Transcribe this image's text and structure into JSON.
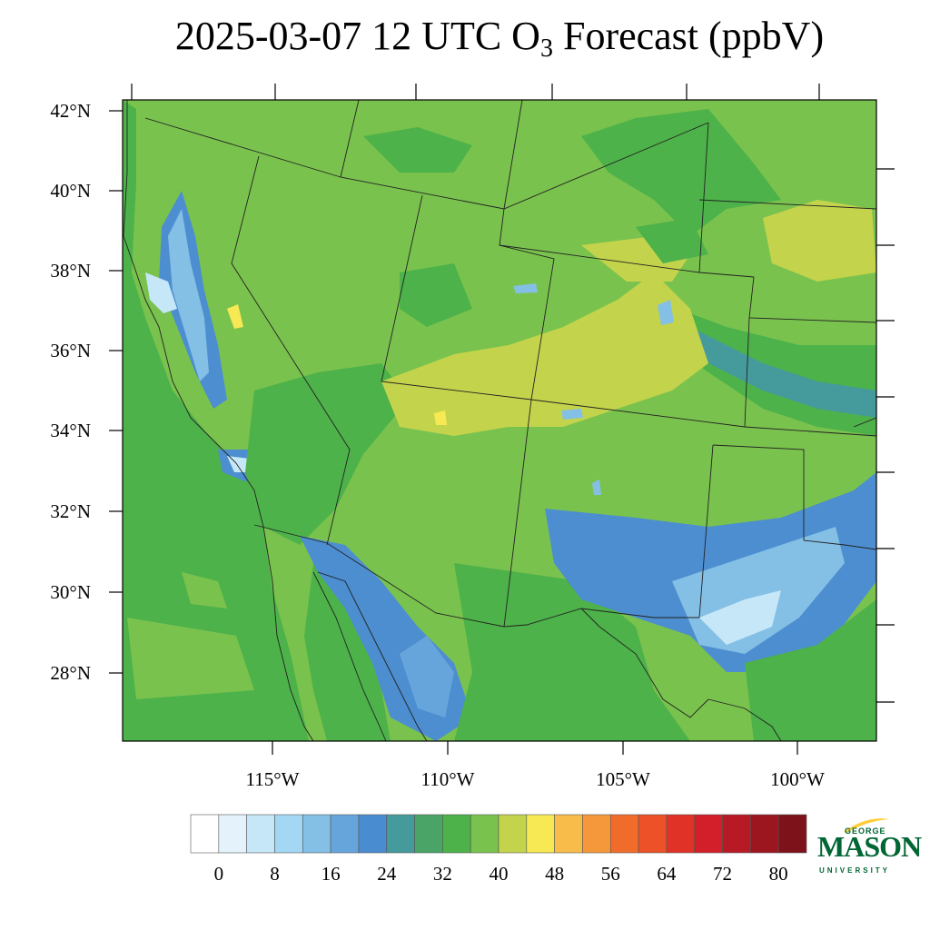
{
  "title": {
    "prefix": "2025-03-07 12 UTC O",
    "subscript": "3",
    "suffix": " Forecast (ppbV)"
  },
  "map": {
    "lat_labels": [
      "42°N",
      "40°N",
      "38°N",
      "36°N",
      "34°N",
      "32°N",
      "30°N",
      "28°N"
    ],
    "lon_labels": [
      "115°W",
      "110°W",
      "105°W",
      "100°W"
    ],
    "field_colors": {
      "dominant": "#7ac24e",
      "low": "#4db249",
      "elevated": "#c3d44c",
      "peak": "#f7e953",
      "depleted_blue": "#4c8ed0",
      "depleted_light": "#7fbde9",
      "minimum": "#ffffff"
    }
  },
  "colorbar": {
    "colors": [
      "#ffffff",
      "#e3f2fb",
      "#c6e7f7",
      "#a3d7f3",
      "#84bfe5",
      "#66a5dc",
      "#4a8cd0",
      "#459a9c",
      "#4aa468",
      "#4db249",
      "#7ac24e",
      "#c3d44c",
      "#f7e953",
      "#f8bc4a",
      "#f5983b",
      "#f16c2b",
      "#ec5127",
      "#e03226",
      "#d21f2a",
      "#b81a25",
      "#9c1620",
      "#7d121a"
    ],
    "tick_labels": [
      "0",
      "8",
      "16",
      "24",
      "32",
      "40",
      "48",
      "56",
      "64",
      "72",
      "80"
    ]
  },
  "logo": {
    "line1": "GEORGE",
    "line2": "MASON",
    "line3": "UNIVERSITY",
    "color": "#006633"
  }
}
